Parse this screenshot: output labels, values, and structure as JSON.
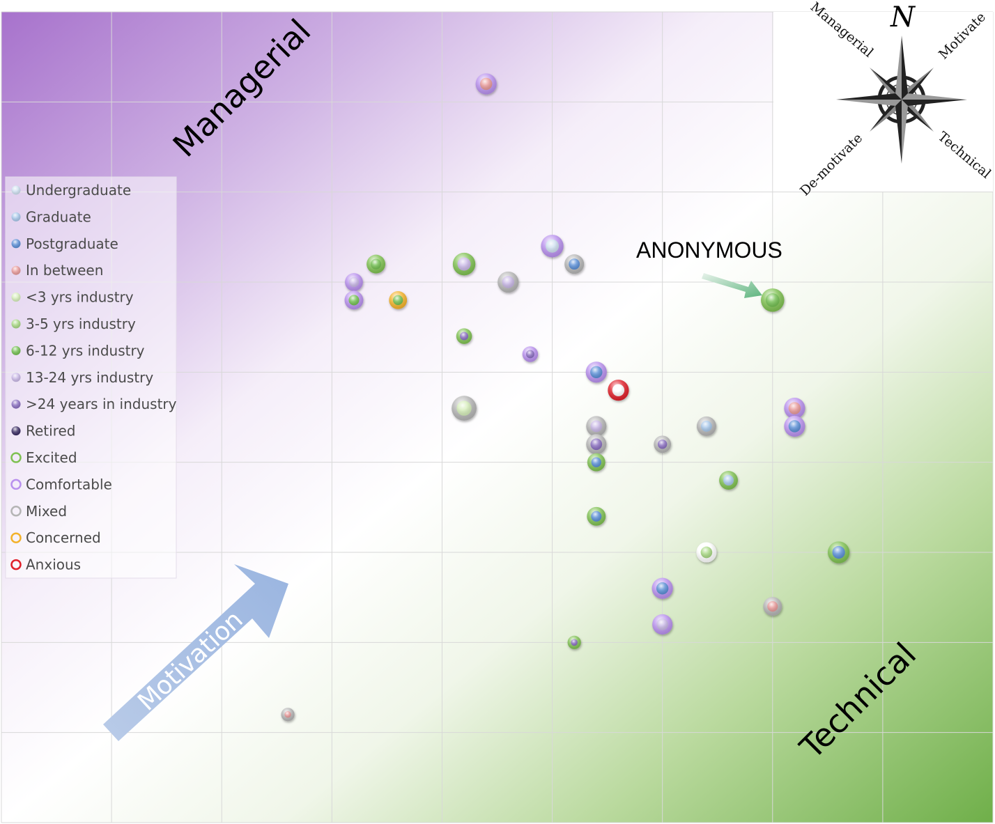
{
  "chart_data": {
    "type": "scatter",
    "title": "",
    "xlabel": "",
    "ylabel": "",
    "grid": true,
    "xlim": [
      0,
      9
    ],
    "ylim": [
      0,
      9
    ],
    "quadrant_labels": {
      "top_left": "Managerial",
      "bottom_right": "Technical"
    },
    "motivation_label": "Motivation",
    "annotation": {
      "text": "ANONYMOUS",
      "x": 7,
      "y": 5.8
    },
    "compass": {
      "north": "N",
      "northwest": "Managerial",
      "northeast": "Motivate",
      "southwest": "De-motivate",
      "southeast": "Technical"
    },
    "legend_position": "left",
    "legend": [
      {
        "label": "Undergraduate",
        "kind": "fill",
        "color": "#cfe0f0"
      },
      {
        "label": "Graduate",
        "kind": "fill",
        "color": "#a8c8ea"
      },
      {
        "label": "Postgraduate",
        "kind": "fill",
        "color": "#5b8fd6"
      },
      {
        "label": "In between",
        "kind": "fill",
        "color": "#e89a9a"
      },
      {
        "label": "<3 yrs industry",
        "kind": "fill",
        "color": "#d6eebb"
      },
      {
        "label": "3-5 yrs industry",
        "kind": "fill",
        "color": "#a9d985"
      },
      {
        "label": "6-12 yrs industry",
        "kind": "fill",
        "color": "#74c053"
      },
      {
        "label": "13-24 yrs industry",
        "kind": "fill",
        "color": "#c9b8e6"
      },
      {
        "label": ">24 years in industry",
        "kind": "fill",
        "color": "#8a6fc0"
      },
      {
        "label": "Retired",
        "kind": "fill",
        "color": "#3a2c63"
      },
      {
        "label": "Excited",
        "kind": "ring",
        "color": "#7fc152"
      },
      {
        "label": "Comfortable",
        "kind": "ring",
        "color": "#b991ee"
      },
      {
        "label": "Mixed",
        "kind": "ring",
        "color": "#b5b5b5"
      },
      {
        "label": "Concerned",
        "kind": "ring",
        "color": "#f3b22b"
      },
      {
        "label": "Anxious",
        "kind": "ring",
        "color": "#e0202a"
      }
    ],
    "points": [
      {
        "x": 4.4,
        "y": 8.2,
        "size": 1.1,
        "fill": "#e89a9a",
        "ring": "#b991ee"
      },
      {
        "x": 3.4,
        "y": 6.2,
        "size": 0.95,
        "fill": "#74c053",
        "ring": "#7fc152"
      },
      {
        "x": 4.2,
        "y": 6.2,
        "size": 1.2,
        "fill": "#c9b8e6",
        "ring": "#7fc152"
      },
      {
        "x": 5.0,
        "y": 6.4,
        "size": 1.2,
        "fill": "#cfe0f0",
        "ring": "#b991ee"
      },
      {
        "x": 5.2,
        "y": 6.2,
        "size": 1.0,
        "fill": "#5b8fd6",
        "ring": "#b5b5b5"
      },
      {
        "x": 4.6,
        "y": 6.0,
        "size": 1.1,
        "fill": "#c9b8e6",
        "ring": "#b5b5b5"
      },
      {
        "x": 3.2,
        "y": 6.0,
        "size": 0.9,
        "fill": "#c9b8e6",
        "ring": "#b991ee"
      },
      {
        "x": 3.2,
        "y": 5.8,
        "size": 0.95,
        "fill": "#74c053",
        "ring": "#b991ee"
      },
      {
        "x": 3.6,
        "y": 5.8,
        "size": 0.9,
        "fill": "#74c053",
        "ring": "#f3b22b"
      },
      {
        "x": 7.0,
        "y": 5.8,
        "size": 1.25,
        "fill": "#74c053",
        "ring": "#7fc152"
      },
      {
        "x": 4.2,
        "y": 5.4,
        "size": 0.75,
        "fill": "#8a6fc0",
        "ring": "#7fc152"
      },
      {
        "x": 4.8,
        "y": 5.2,
        "size": 0.75,
        "fill": "#8a6fc0",
        "ring": "#b991ee"
      },
      {
        "x": 5.4,
        "y": 5.0,
        "size": 1.1,
        "fill": "#5b8fd6",
        "ring": "#b991ee"
      },
      {
        "x": 5.6,
        "y": 4.8,
        "size": 1.1,
        "fill": "#ffffff",
        "ring": "#e0202a"
      },
      {
        "x": 4.2,
        "y": 4.6,
        "size": 1.35,
        "fill": "#d6eebb",
        "ring": "#b5b5b5"
      },
      {
        "x": 7.2,
        "y": 4.6,
        "size": 1.1,
        "fill": "#e89a9a",
        "ring": "#b991ee"
      },
      {
        "x": 5.4,
        "y": 4.4,
        "size": 1.05,
        "fill": "#c9b8e6",
        "ring": "#b5b5b5"
      },
      {
        "x": 6.4,
        "y": 4.4,
        "size": 1.0,
        "fill": "#a8c8ea",
        "ring": "#b5b5b5"
      },
      {
        "x": 7.2,
        "y": 4.4,
        "size": 1.1,
        "fill": "#5b8fd6",
        "ring": "#b991ee"
      },
      {
        "x": 5.4,
        "y": 4.2,
        "size": 1.05,
        "fill": "#8a6fc0",
        "ring": "#b5b5b5"
      },
      {
        "x": 6.0,
        "y": 4.2,
        "size": 0.85,
        "fill": "#8a6fc0",
        "ring": "#b5b5b5"
      },
      {
        "x": 5.4,
        "y": 4.0,
        "size": 0.9,
        "fill": "#5b8fd6",
        "ring": "#7fc152"
      },
      {
        "x": 6.6,
        "y": 3.8,
        "size": 0.95,
        "fill": "#a8c8ea",
        "ring": "#7fc152"
      },
      {
        "x": 5.4,
        "y": 3.4,
        "size": 0.95,
        "fill": "#5b8fd6",
        "ring": "#7fc152"
      },
      {
        "x": 6.4,
        "y": 3.0,
        "size": 1.05,
        "fill": "#a9d985",
        "ring": "#ffffff"
      },
      {
        "x": 7.6,
        "y": 3.0,
        "size": 1.15,
        "fill": "#5b8fd6",
        "ring": "#7fc152"
      },
      {
        "x": 6.0,
        "y": 2.6,
        "size": 1.1,
        "fill": "#5b8fd6",
        "ring": "#b991ee"
      },
      {
        "x": 7.0,
        "y": 2.4,
        "size": 0.95,
        "fill": "#e89a9a",
        "ring": "#b5b5b5"
      },
      {
        "x": 6.0,
        "y": 2.2,
        "size": 1.05,
        "fill": "#c9b8e6",
        "ring": "#b991ee"
      },
      {
        "x": 5.2,
        "y": 2.0,
        "size": 0.6,
        "fill": "#8a6fc0",
        "ring": "#7fc152"
      },
      {
        "x": 2.6,
        "y": 1.2,
        "size": 0.6,
        "fill": "#e89a9a",
        "ring": "#b5b5b5"
      }
    ]
  }
}
